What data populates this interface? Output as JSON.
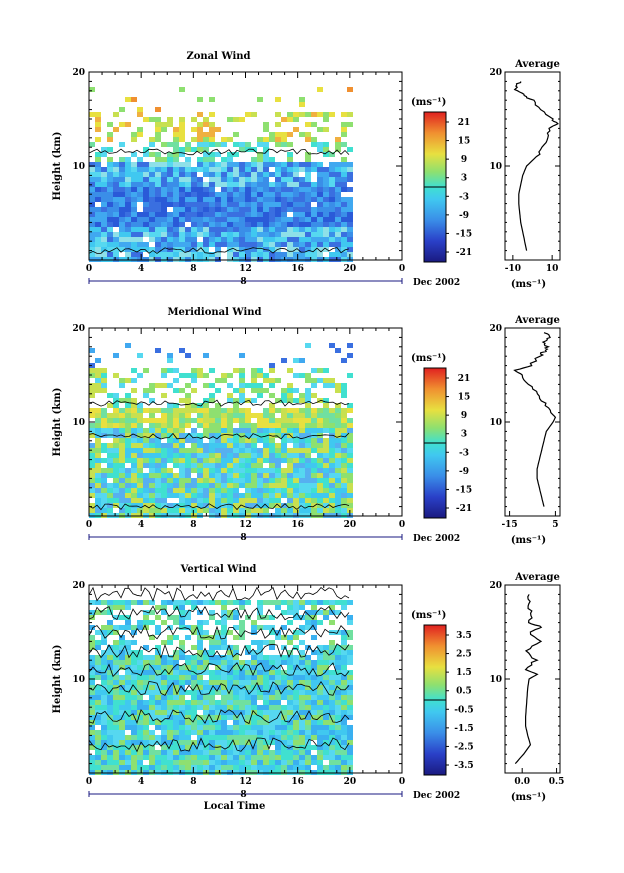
{
  "chart_data": [
    {
      "type": "heatmap",
      "title": "Zonal Wind",
      "ylabel": "Height (km)",
      "xlabel": "",
      "x_ticks": [
        "0",
        "4",
        "8",
        "12",
        "16",
        "20",
        "0"
      ],
      "y_ticks": [
        "10",
        "20"
      ],
      "date_marker": "8",
      "date_label": "Dec 2002",
      "colorbar": {
        "unit": "(ms⁻¹)",
        "labels": [
          "21",
          "15",
          "9",
          "3",
          "-3",
          "-9",
          "-15",
          "-21"
        ]
      },
      "profile": {
        "title": "Average",
        "y_ticks": [
          "10",
          "20"
        ],
        "x_ticks": [
          "-10",
          "10"
        ],
        "xlabel": "(ms⁻¹)",
        "xlim": [
          -14,
          14
        ],
        "ylim": [
          0,
          20
        ],
        "y": [
          1,
          2,
          3,
          4,
          5,
          6,
          7,
          8,
          9,
          10,
          11,
          12,
          13,
          14,
          14.5,
          15,
          16,
          17,
          17.5,
          18,
          18.5,
          19
        ],
        "x": [
          -3,
          -4,
          -5,
          -6,
          -6.5,
          -7,
          -7,
          -6,
          -5,
          -3,
          2,
          5,
          7,
          9,
          12,
          10,
          5,
          0,
          -4,
          -8,
          -9,
          -6
        ]
      }
    },
    {
      "type": "heatmap",
      "title": "Meridional Wind",
      "ylabel": "Height (km)",
      "xlabel": "",
      "x_ticks": [
        "0",
        "4",
        "8",
        "12",
        "16",
        "20",
        "0"
      ],
      "y_ticks": [
        "10",
        "20"
      ],
      "date_marker": "8",
      "date_label": "Dec 2002",
      "colorbar": {
        "unit": "(ms⁻¹)",
        "labels": [
          "21",
          "15",
          "9",
          "3",
          "-3",
          "-9",
          "-15",
          "-21"
        ]
      },
      "profile": {
        "title": "Average",
        "y_ticks": [
          "10",
          "20"
        ],
        "x_ticks": [
          "-15",
          "5"
        ],
        "xlabel": "(ms⁻¹)",
        "xlim": [
          -17,
          7
        ],
        "ylim": [
          0,
          20
        ],
        "y": [
          1,
          2,
          3,
          4,
          5,
          6,
          7,
          8,
          9,
          10,
          10.5,
          11,
          12,
          13,
          14,
          15,
          15.5,
          16,
          17,
          17.5,
          18,
          18.5,
          19,
          19.5
        ],
        "x": [
          0,
          -1,
          -2,
          -3,
          -3,
          -2,
          -1,
          0,
          1,
          4,
          5,
          3,
          0,
          -3,
          -7,
          -10,
          -12,
          -6,
          -2,
          0,
          2,
          -1,
          3,
          0
        ]
      }
    },
    {
      "type": "heatmap",
      "title": "Vertical Wind",
      "ylabel": "Height (km)",
      "xlabel": "Local Time",
      "x_ticks": [
        "0",
        "4",
        "8",
        "12",
        "16",
        "20",
        "0"
      ],
      "y_ticks": [
        "10",
        "20"
      ],
      "date_marker": "8",
      "date_label": "Dec 2002",
      "colorbar": {
        "unit": "(ms⁻¹)",
        "labels": [
          "3.5",
          "2.5",
          "1.5",
          "0.5",
          "-0.5",
          "-1.5",
          "-2.5",
          "-3.5"
        ]
      },
      "profile": {
        "title": "Average",
        "y_ticks": [
          "10",
          "20"
        ],
        "x_ticks": [
          "0.0",
          "0.5"
        ],
        "xlabel": "(ms⁻¹)",
        "xlim": [
          -0.25,
          0.55
        ],
        "ylim": [
          0,
          20
        ],
        "y": [
          1,
          2,
          3,
          4,
          5,
          6,
          7,
          8,
          9,
          10,
          10.5,
          11,
          12,
          13,
          14,
          15,
          15.5,
          16,
          17,
          18,
          19
        ],
        "x": [
          -0.1,
          0.02,
          0.12,
          0.08,
          0.05,
          0.05,
          0.06,
          0.07,
          0.08,
          0.1,
          0.22,
          0.05,
          0.2,
          0.05,
          0.25,
          0.1,
          0.28,
          0.1,
          0.15,
          0.08,
          0.1
        ]
      }
    }
  ]
}
